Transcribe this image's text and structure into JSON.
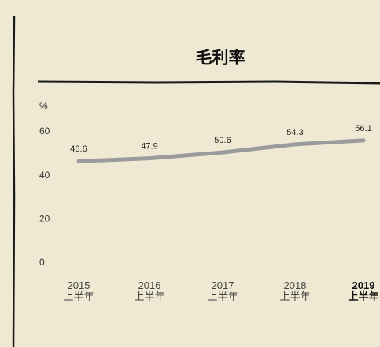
{
  "chart_data": {
    "type": "line",
    "title": "毛利率",
    "y_label": "%",
    "categories": [
      [
        "2015",
        "上半年"
      ],
      [
        "2016",
        "上半年"
      ],
      [
        "2017",
        "上半年"
      ],
      [
        "2018",
        "上半年"
      ],
      [
        "2019",
        "上半年"
      ]
    ],
    "series": [
      {
        "name": "毛利率",
        "color": "#9b9b9b",
        "values": [
          46.6,
          47.9,
          50.6,
          54.3,
          56.1
        ]
      }
    ],
    "ylim": [
      0,
      60
    ],
    "yticks": [
      0,
      20,
      40,
      60
    ],
    "grid": false
  }
}
